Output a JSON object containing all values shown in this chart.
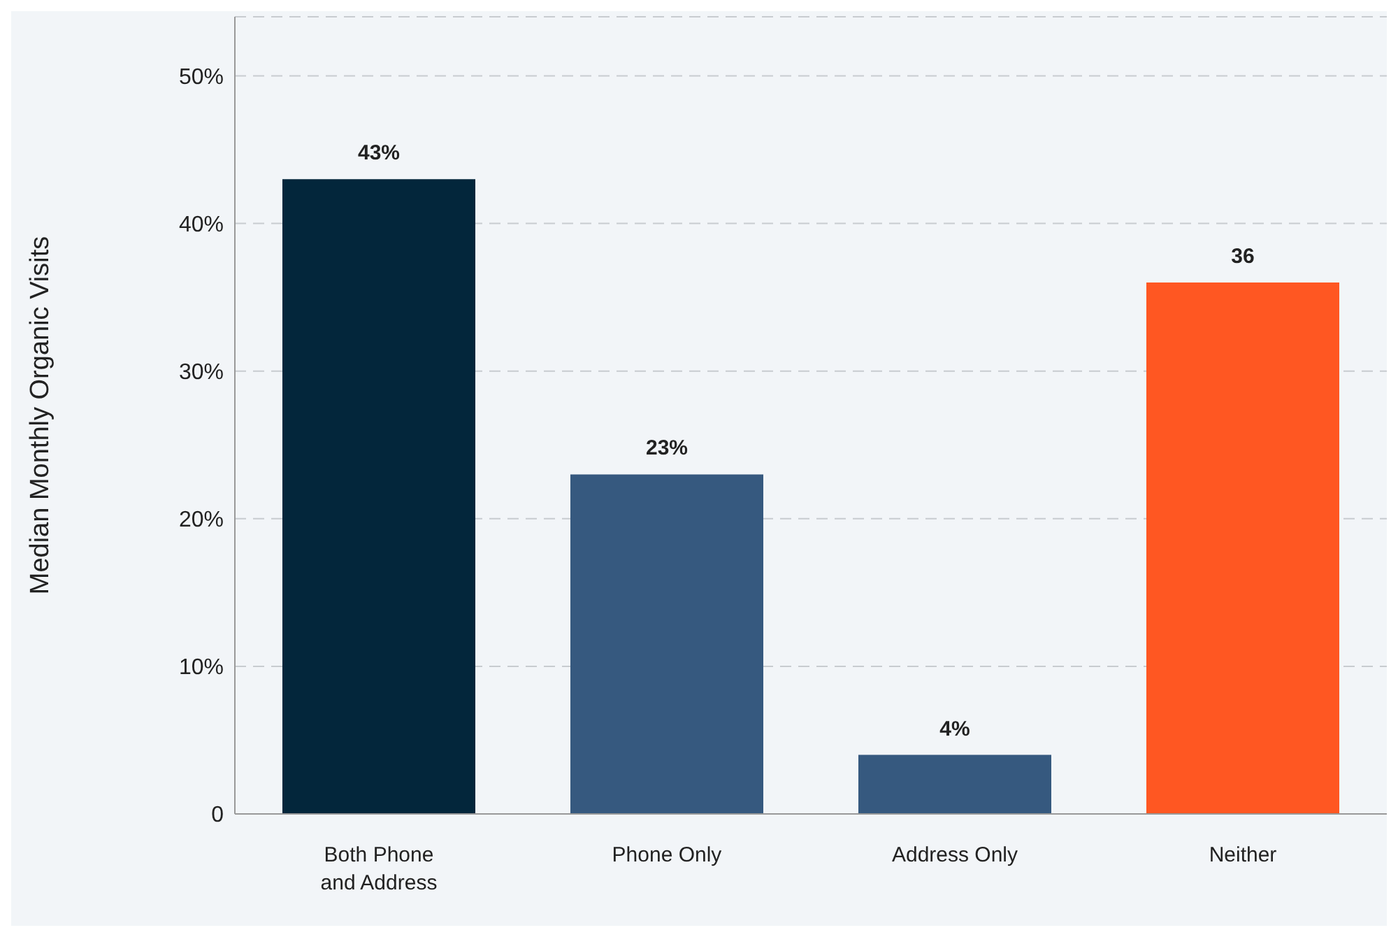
{
  "chart_data": {
    "type": "bar",
    "ylabel": "Median Monthly Organic Visits",
    "categories": [
      "Both Phone and Address",
      "Phone Only",
      "Address Only",
      "Neither"
    ],
    "values": [
      43,
      23,
      4,
      36
    ],
    "colors": [
      "#03263b",
      "#36597f",
      "#36597f",
      "#ff5722"
    ],
    "value_labels": [
      "43%",
      "23%",
      "4%",
      "36"
    ],
    "ylim": [
      0,
      54
    ],
    "yticks": [
      0,
      {
        "value": 10,
        "label": "10%"
      },
      {
        "value": 20,
        "label": "20%"
      },
      {
        "value": 30,
        "label": "30%"
      },
      {
        "value": 40,
        "label": "40%"
      },
      {
        "value": 50,
        "label": "50%"
      }
    ],
    "grid": "y"
  }
}
